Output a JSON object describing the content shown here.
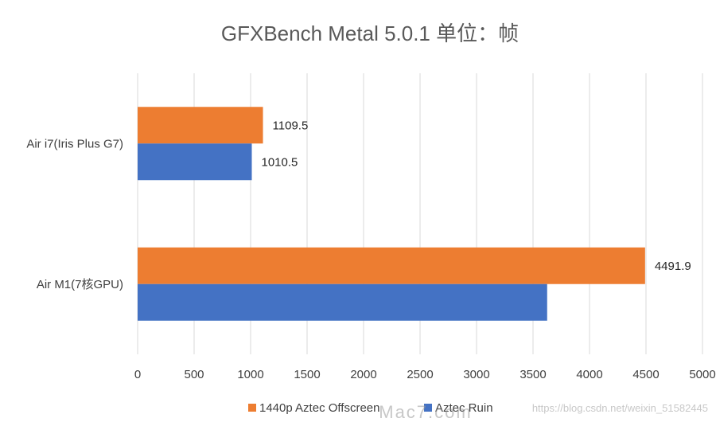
{
  "chart_data": {
    "type": "bar",
    "orientation": "horizontal",
    "title": "GFXBench Metal 5.0.1 单位：帧",
    "categories": [
      "Air i7(Iris Plus G7)",
      "Air M1(7核GPU)"
    ],
    "series": [
      {
        "name": "1440p Aztec Offscreen",
        "color": "#ED7D31",
        "values": [
          1109.5,
          4491.9
        ],
        "labels": [
          "1109.5",
          "4491.9"
        ]
      },
      {
        "name": "Aztec Ruin",
        "color": "#4472C4",
        "values": [
          1010.5,
          3625
        ],
        "labels": [
          "1010.5",
          ""
        ]
      }
    ],
    "xlim": [
      0,
      5000
    ],
    "xticks": [
      "0",
      "500",
      "1000",
      "1500",
      "2000",
      "2500",
      "3000",
      "3500",
      "4000",
      "4500",
      "5000"
    ],
    "grid": true,
    "legend_position": "bottom"
  },
  "watermark": {
    "csdn": "https://blog.csdn.net/weixin_51582445",
    "mac": "Mac7.com"
  }
}
